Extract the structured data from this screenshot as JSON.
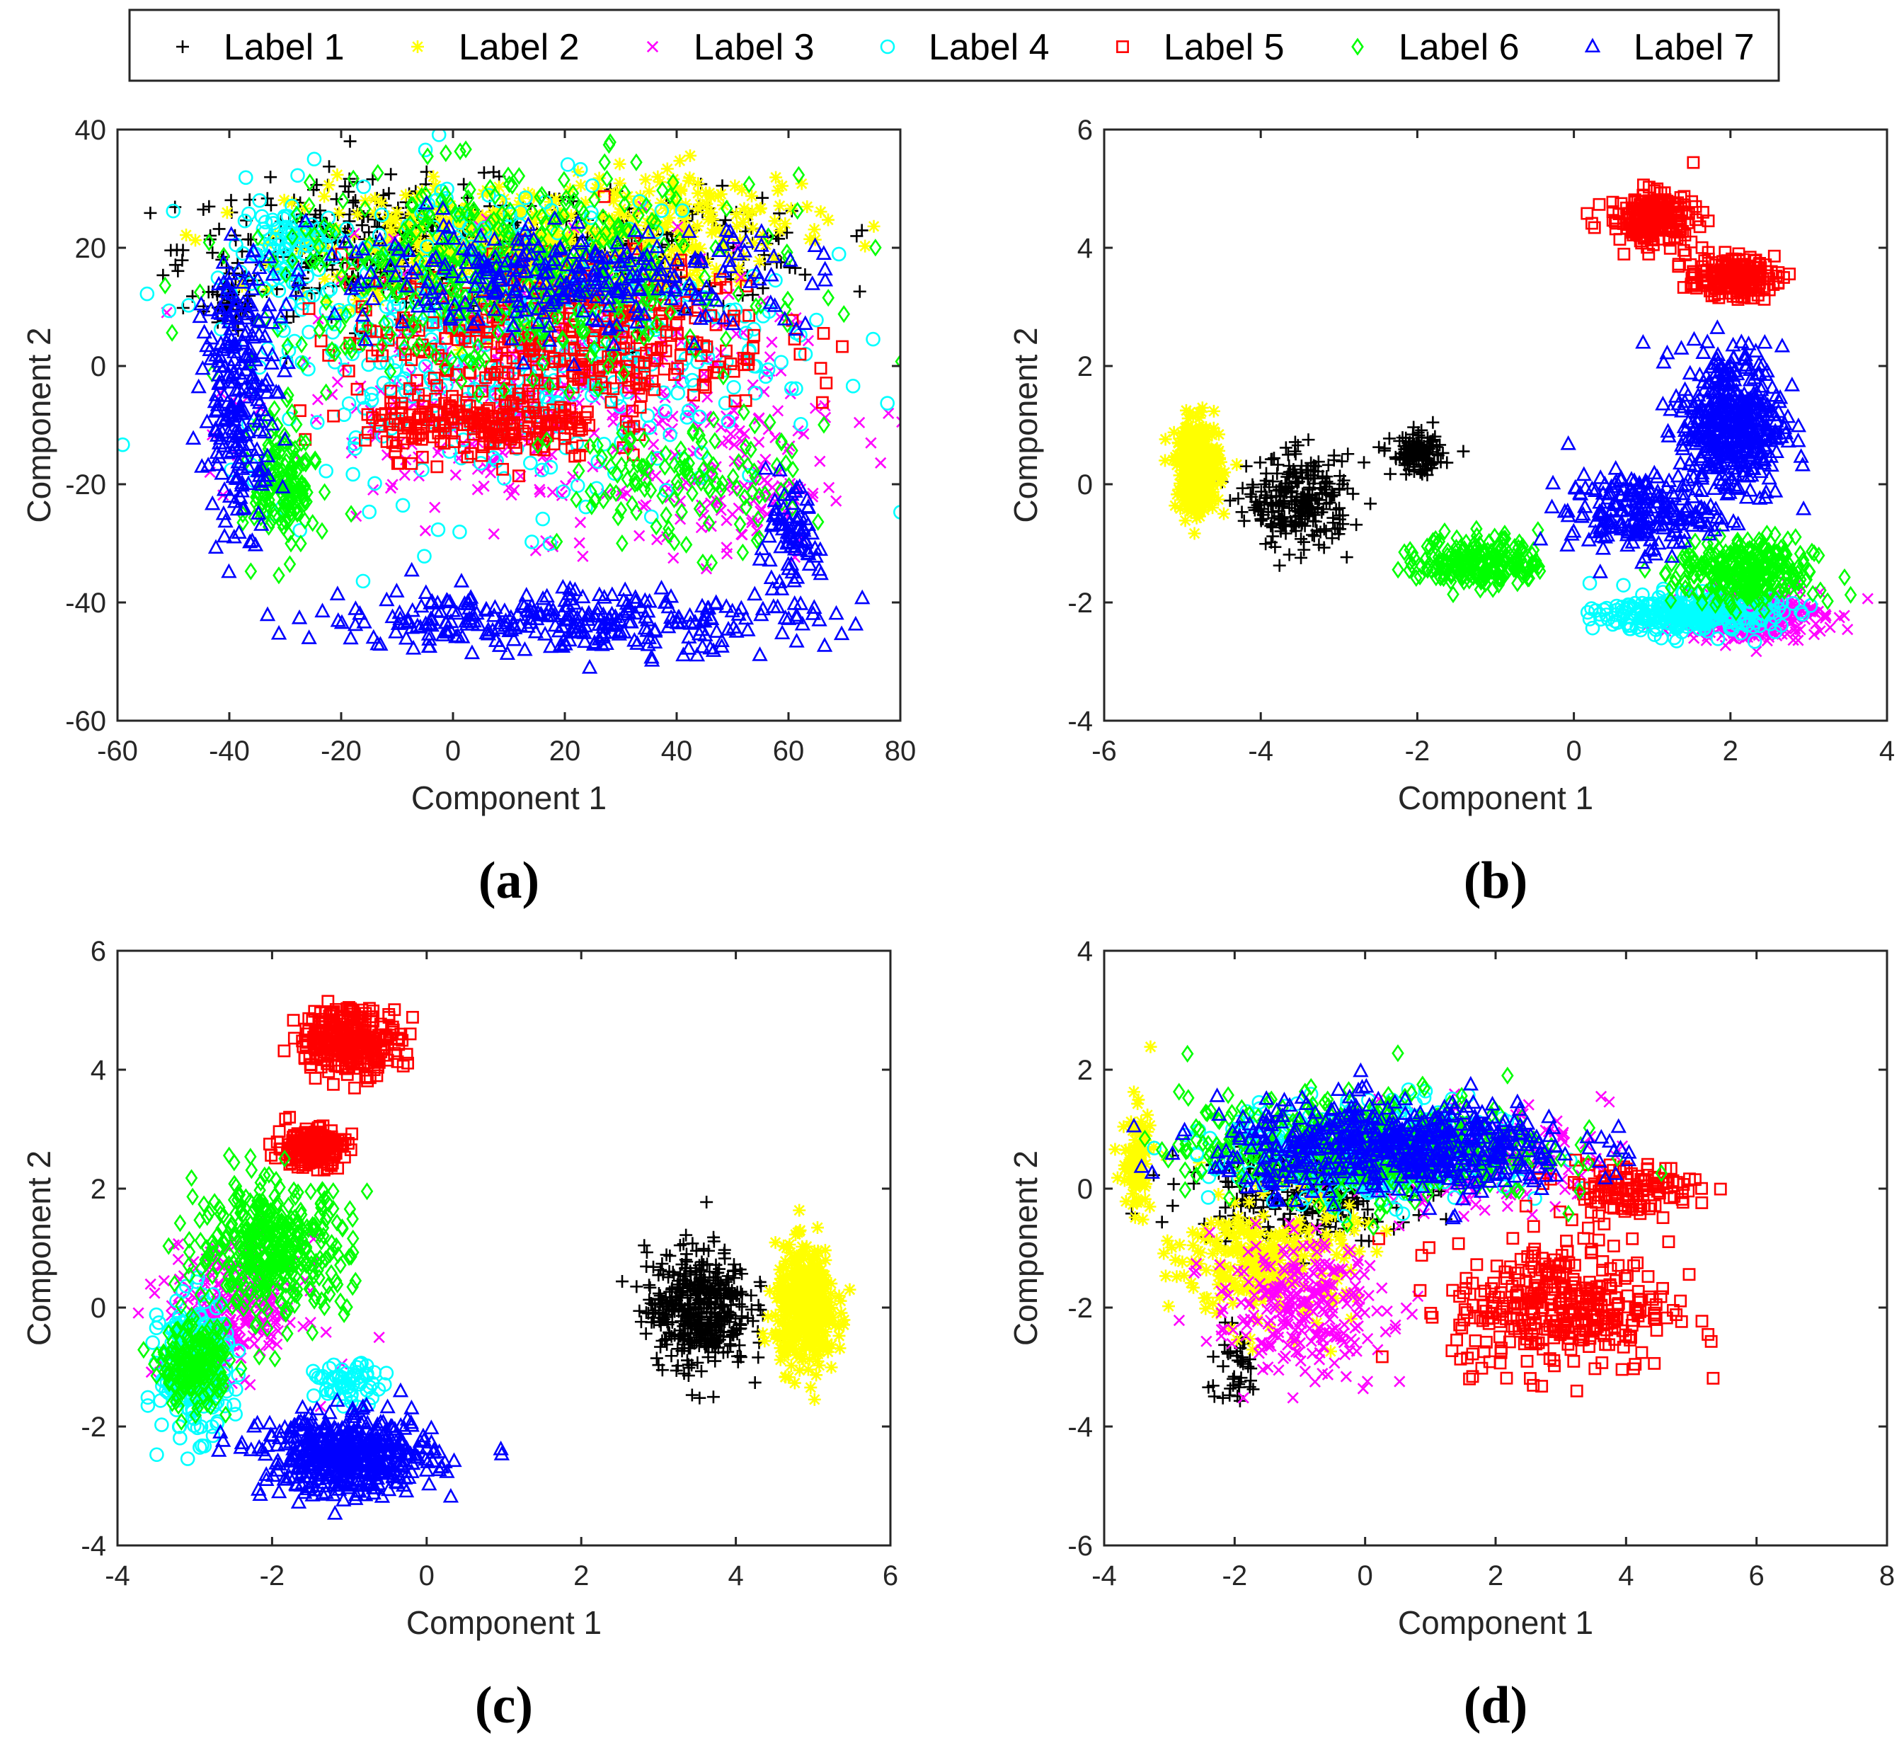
{
  "legend": {
    "entries": [
      {
        "label": "Label 1",
        "color": "#000000",
        "marker": "plus"
      },
      {
        "label": "Label 2",
        "color": "#ffff00",
        "marker": "star"
      },
      {
        "label": "Label 3",
        "color": "#ff00ff",
        "marker": "x"
      },
      {
        "label": "Label 4",
        "color": "#00ffff",
        "marker": "circle"
      },
      {
        "label": "Label 5",
        "color": "#ff0000",
        "marker": "square"
      },
      {
        "label": "Label 6",
        "color": "#00ff00",
        "marker": "diamond"
      },
      {
        "label": "Label 7",
        "color": "#0000ff",
        "marker": "triangle"
      }
    ]
  },
  "chart_data": [
    {
      "type": "scatter",
      "caption": "(a)",
      "xlabel": "Component 1",
      "ylabel": "Component 2",
      "xlim": [
        -60,
        80
      ],
      "ylim": [
        -60,
        40
      ],
      "xticks": [
        -60,
        -40,
        -20,
        0,
        20,
        40,
        60,
        80
      ],
      "yticks": [
        -60,
        -40,
        -20,
        0,
        20,
        40
      ],
      "series": [
        {
          "name": "Label 1",
          "clusters": [
            [
              -10,
              20,
              35,
              10,
              420
            ],
            [
              40,
              20,
              25,
              8,
              150
            ],
            [
              -40,
              10,
              4,
              4,
              40
            ]
          ]
        },
        {
          "name": "Label 2",
          "clusters": [
            [
              10,
              20,
              35,
              10,
              440
            ],
            [
              45,
              25,
              20,
              8,
              120
            ]
          ]
        },
        {
          "name": "Label 3",
          "clusters": [
            [
              15,
              -5,
              40,
              20,
              380
            ],
            [
              50,
              -20,
              15,
              12,
              100
            ]
          ]
        },
        {
          "name": "Label 4",
          "clusters": [
            [
              10,
              5,
              45,
              25,
              480
            ],
            [
              -30,
              20,
              8,
              8,
              80
            ]
          ]
        },
        {
          "name": "Label 5",
          "clusters": [
            [
              20,
              5,
              35,
              12,
              360
            ],
            [
              5,
              -10,
              20,
              5,
              220
            ]
          ]
        },
        {
          "name": "Label 6",
          "clusters": [
            [
              10,
              15,
              40,
              15,
              480
            ],
            [
              -30,
              -20,
              5,
              10,
              150
            ],
            [
              40,
              -20,
              20,
              10,
              120
            ]
          ]
        },
        {
          "name": "Label 7",
          "clusters": [
            [
              -38,
              -5,
              6,
              20,
              240
            ],
            [
              20,
              -43,
              40,
              5,
              300
            ],
            [
              60,
              -30,
              5,
              8,
              80
            ],
            [
              20,
              15,
              40,
              8,
              300
            ]
          ]
        }
      ]
    },
    {
      "type": "scatter",
      "caption": "(b)",
      "xlabel": "Component 1",
      "ylabel": "Component 2",
      "xlim": [
        -6,
        4
      ],
      "ylim": [
        -4,
        6
      ],
      "xticks": [
        -6,
        -4,
        -2,
        0,
        2,
        4
      ],
      "yticks": [
        -4,
        -2,
        0,
        2,
        4,
        6
      ],
      "series": [
        {
          "name": "Label 1",
          "clusters": [
            [
              -3.5,
              -0.3,
              0.6,
              0.7,
              260
            ],
            [
              -2,
              0.5,
              0.3,
              0.3,
              120
            ]
          ]
        },
        {
          "name": "Label 2",
          "clusters": [
            [
              -4.8,
              0.3,
              0.25,
              0.7,
              360
            ]
          ]
        },
        {
          "name": "Label 3",
          "clusters": [
            [
              2.3,
              -2.2,
              0.8,
              0.4,
              300
            ]
          ]
        },
        {
          "name": "Label 4",
          "clusters": [
            [
              1.5,
              -2.2,
              1.0,
              0.3,
              300
            ]
          ]
        },
        {
          "name": "Label 5",
          "clusters": [
            [
              1.0,
              4.5,
              0.5,
              0.4,
              220
            ],
            [
              2.0,
              3.5,
              0.5,
              0.3,
              200
            ]
          ]
        },
        {
          "name": "Label 6",
          "clusters": [
            [
              -1.2,
              -1.3,
              0.7,
              0.4,
              220
            ],
            [
              2.2,
              -1.5,
              0.8,
              0.5,
              300
            ]
          ]
        },
        {
          "name": "Label 7",
          "clusters": [
            [
              2.0,
              1.0,
              0.6,
              1.2,
              460
            ],
            [
              0.8,
              -0.5,
              0.8,
              0.6,
              200
            ]
          ]
        }
      ]
    },
    {
      "type": "scatter",
      "caption": "(c)",
      "xlabel": "Component 1",
      "ylabel": "Component 2",
      "xlim": [
        -4,
        6
      ],
      "ylim": [
        -4,
        6
      ],
      "xticks": [
        -4,
        -2,
        0,
        2,
        4,
        6
      ],
      "yticks": [
        -4,
        -2,
        0,
        2,
        4,
        6
      ],
      "series": [
        {
          "name": "Label 1",
          "clusters": [
            [
              3.5,
              0.0,
              0.6,
              0.9,
              440
            ]
          ]
        },
        {
          "name": "Label 2",
          "clusters": [
            [
              4.9,
              0.0,
              0.35,
              0.9,
              440
            ]
          ]
        },
        {
          "name": "Label 3",
          "clusters": [
            [
              -2.5,
              0.0,
              0.8,
              1.0,
              260
            ]
          ]
        },
        {
          "name": "Label 4",
          "clusters": [
            [
              -3.0,
              -1.0,
              0.4,
              1.0,
              260
            ],
            [
              -1.0,
              -1.3,
              0.4,
              0.3,
              60
            ]
          ]
        },
        {
          "name": "Label 5",
          "clusters": [
            [
              -1.0,
              4.5,
              0.6,
              0.5,
              300
            ],
            [
              -1.5,
              2.7,
              0.4,
              0.3,
              200
            ]
          ]
        },
        {
          "name": "Label 6",
          "clusters": [
            [
              -2.0,
              1.0,
              0.9,
              1.0,
              400
            ],
            [
              -3.0,
              -1.0,
              0.4,
              0.6,
              200
            ]
          ]
        },
        {
          "name": "Label 7",
          "clusters": [
            [
              -1.0,
              -2.5,
              1.0,
              0.6,
              500
            ]
          ]
        }
      ]
    },
    {
      "type": "scatter",
      "caption": "(d)",
      "xlabel": "Component 1",
      "ylabel": "Component 2",
      "xlim": [
        -4,
        8
      ],
      "ylim": [
        -6,
        4
      ],
      "xticks": [
        -4,
        -2,
        0,
        2,
        4,
        6,
        8
      ],
      "yticks": [
        -6,
        -4,
        -2,
        0,
        2,
        4
      ],
      "series": [
        {
          "name": "Label 1",
          "clusters": [
            [
              -1.0,
              0.0,
              1.5,
              0.8,
              300
            ],
            [
              -2.0,
              -3.0,
              0.4,
              0.6,
              40
            ]
          ]
        },
        {
          "name": "Label 2",
          "clusters": [
            [
              -1.5,
              -1.2,
              1.2,
              1.0,
              260
            ],
            [
              -3.5,
              0.5,
              0.2,
              0.8,
              100
            ]
          ]
        },
        {
          "name": "Label 3",
          "clusters": [
            [
              -1.0,
              -2.0,
              1.2,
              1.0,
              260
            ],
            [
              1.5,
              0.5,
              2.0,
              0.8,
              200
            ]
          ]
        },
        {
          "name": "Label 4",
          "clusters": [
            [
              0.0,
              0.6,
              2.0,
              0.8,
              360
            ]
          ]
        },
        {
          "name": "Label 5",
          "clusters": [
            [
              3.0,
              -2.0,
              1.5,
              1.0,
              360
            ],
            [
              4.0,
              0.0,
              1.0,
              0.4,
              120
            ]
          ]
        },
        {
          "name": "Label 6",
          "clusters": [
            [
              0.0,
              0.7,
              2.5,
              0.8,
              460
            ]
          ]
        },
        {
          "name": "Label 7",
          "clusters": [
            [
              0.5,
              0.7,
              2.5,
              0.7,
              560
            ]
          ]
        }
      ]
    }
  ]
}
